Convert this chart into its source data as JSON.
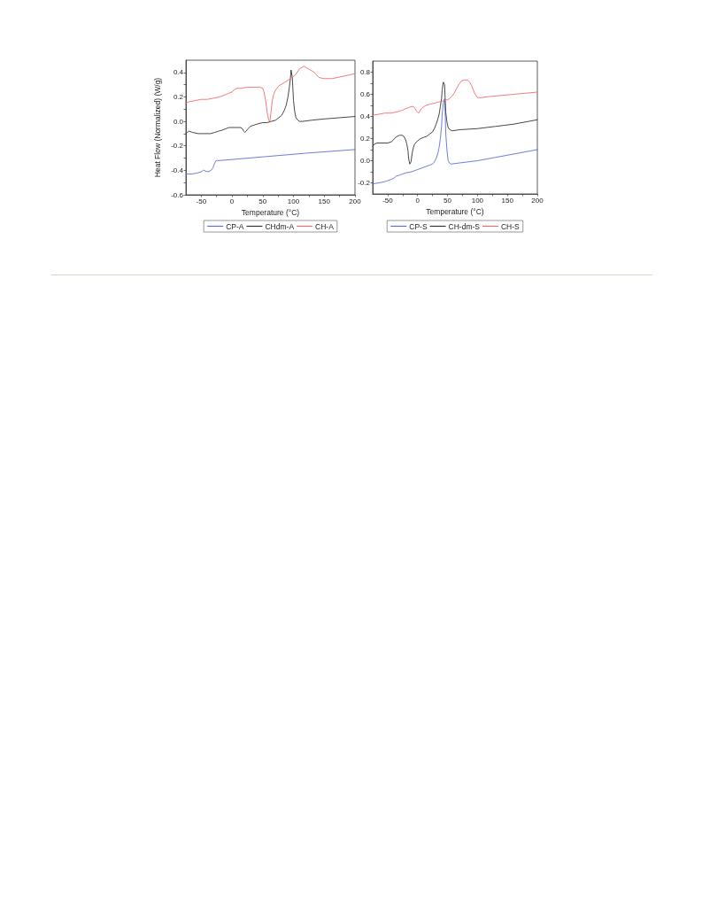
{
  "chart_data": [
    {
      "type": "line",
      "xlabel": "Temperature (°C)",
      "ylabel": "Heat Flow (Normalized) (W/g)",
      "xlim": [
        -75,
        200
      ],
      "ylim": [
        -0.6,
        0.5
      ],
      "xticks": [
        -50,
        {
          "value": -25,
          "label": null
        },
        0,
        {
          "value": 25,
          "label": null
        },
        50,
        {
          "value": 75,
          "label": null
        },
        100,
        {
          "value": 125,
          "label": null
        },
        150,
        {
          "value": 175,
          "label": null
        },
        200
      ],
      "yticks": [
        -0.6,
        {
          "value": -0.5,
          "label": null
        },
        -0.4,
        {
          "value": -0.3,
          "label": null
        },
        -0.2,
        {
          "value": -0.1,
          "label": null
        },
        {
          "value": 0,
          "label": "0.0"
        },
        {
          "value": 0.1,
          "label": null
        },
        0.2,
        {
          "value": 0.3,
          "label": null
        },
        0.4
      ],
      "legend": "bottom",
      "marker": "none",
      "line_style": "solid",
      "series": [
        {
          "name": "CP-A",
          "color": "#5b6fd6",
          "x": [
            -75,
            -65,
            -55,
            -49,
            -47,
            -45,
            -42,
            -38,
            -34,
            -31,
            -29,
            -28,
            -26,
            -24,
            -20,
            50,
            120,
            200
          ],
          "values": [
            -0.43,
            -0.43,
            -0.42,
            -0.41,
            -0.4,
            -0.4,
            -0.41,
            -0.41,
            -0.4,
            -0.38,
            -0.35,
            -0.34,
            -0.32,
            -0.32,
            -0.32,
            -0.29,
            -0.26,
            -0.23
          ]
        },
        {
          "name": "CHdm-A",
          "color": "#333333",
          "x": [
            -75,
            -73,
            -70,
            -64,
            -55,
            -45,
            -35,
            -28,
            -22,
            -15,
            -10,
            -5,
            0,
            5,
            10,
            14,
            17,
            19,
            21,
            23,
            26,
            30,
            36,
            42,
            50,
            57,
            64,
            71,
            76,
            81,
            85,
            88,
            91,
            93,
            95,
            96,
            98,
            99,
            100,
            102,
            104,
            107,
            110,
            115,
            130,
            150,
            175,
            200
          ],
          "values": [
            -0.1,
            -0.09,
            -0.08,
            -0.09,
            -0.1,
            -0.1,
            -0.1,
            -0.09,
            -0.08,
            -0.07,
            -0.06,
            -0.05,
            -0.05,
            -0.05,
            -0.05,
            -0.05,
            -0.06,
            -0.08,
            -0.09,
            -0.08,
            -0.06,
            -0.04,
            -0.03,
            -0.02,
            -0.01,
            -0.01,
            0.0,
            0.01,
            0.03,
            0.05,
            0.09,
            0.13,
            0.2,
            0.27,
            0.35,
            0.42,
            0.36,
            0.27,
            0.17,
            0.08,
            0.03,
            0.01,
            0.0,
            0.0,
            0.01,
            0.02,
            0.03,
            0.04
          ]
        },
        {
          "name": "CH-A",
          "color": "#f26c6c",
          "x": [
            -75,
            -70,
            -60,
            -50,
            -40,
            -30,
            -20,
            -10,
            -5,
            0,
            4,
            8,
            15,
            25,
            35,
            45,
            50,
            52,
            54,
            56,
            58,
            60,
            61,
            62,
            63,
            65,
            67,
            70,
            76,
            86,
            95,
            103,
            110,
            117,
            124,
            134,
            141,
            148,
            163,
            182,
            200
          ],
          "values": [
            0.15,
            0.16,
            0.17,
            0.18,
            0.18,
            0.19,
            0.2,
            0.22,
            0.23,
            0.24,
            0.26,
            0.27,
            0.27,
            0.28,
            0.28,
            0.28,
            0.27,
            0.24,
            0.19,
            0.12,
            0.05,
            0.01,
            0.0,
            0.01,
            0.06,
            0.15,
            0.21,
            0.25,
            0.29,
            0.32,
            0.35,
            0.38,
            0.43,
            0.45,
            0.43,
            0.4,
            0.36,
            0.35,
            0.35,
            0.37,
            0.39
          ]
        }
      ]
    },
    {
      "type": "line",
      "xlabel": "Temperature (°C)",
      "xlim": [
        -75,
        200
      ],
      "ylim": [
        -0.3,
        0.9
      ],
      "xticks": [
        -50,
        {
          "value": -25,
          "label": null
        },
        0,
        {
          "value": 25,
          "label": null
        },
        50,
        {
          "value": 75,
          "label": null
        },
        100,
        {
          "value": 125,
          "label": null
        },
        150,
        {
          "value": 175,
          "label": null
        },
        200
      ],
      "yticks": [
        -0.2,
        {
          "value": -0.1,
          "label": null
        },
        {
          "value": 0,
          "label": "0.0"
        },
        {
          "value": 0.1,
          "label": null
        },
        0.2,
        {
          "value": 0.3,
          "label": null
        },
        0.4,
        {
          "value": 0.5,
          "label": null
        },
        0.6,
        {
          "value": 0.7,
          "label": null
        },
        0.8
      ],
      "legend": "bottom",
      "marker": "none",
      "line_style": "solid",
      "series": [
        {
          "name": "CP-S",
          "color": "#5b6fd6",
          "x": [
            -75,
            -65,
            -55,
            -45,
            -40,
            -36,
            -30,
            -20,
            -10,
            0,
            10,
            20,
            25,
            28,
            31,
            34,
            36,
            38,
            40,
            41,
            43,
            45,
            46,
            47,
            49,
            51,
            53,
            56,
            70,
            100,
            130,
            160,
            200
          ],
          "values": [
            -0.21,
            -0.2,
            -0.19,
            -0.17,
            -0.16,
            -0.14,
            -0.13,
            -0.11,
            -0.1,
            -0.08,
            -0.06,
            -0.04,
            -0.03,
            -0.01,
            0.02,
            0.07,
            0.12,
            0.2,
            0.31,
            0.42,
            0.52,
            0.56,
            0.45,
            0.25,
            0.1,
            0.0,
            -0.02,
            -0.03,
            -0.02,
            0.0,
            0.03,
            0.06,
            0.1
          ]
        },
        {
          "name": "CH-dm-S",
          "color": "#333333",
          "x": [
            -75,
            -72,
            -68,
            -60,
            -50,
            -44,
            -40,
            -37,
            -34,
            -30,
            -26,
            -23,
            -20,
            -18,
            -16,
            -15,
            -13,
            -12,
            -11,
            -9,
            -7,
            -5,
            0,
            5,
            10,
            15,
            20,
            25,
            28,
            31,
            34,
            36,
            38,
            40,
            41,
            43,
            45,
            46,
            47,
            49,
            51,
            54,
            58,
            70,
            100,
            130,
            160,
            200
          ],
          "values": [
            0.13,
            0.15,
            0.16,
            0.16,
            0.16,
            0.17,
            0.19,
            0.21,
            0.22,
            0.23,
            0.23,
            0.22,
            0.19,
            0.15,
            0.09,
            0.02,
            -0.03,
            -0.03,
            -0.01,
            0.07,
            0.12,
            0.15,
            0.18,
            0.2,
            0.21,
            0.22,
            0.24,
            0.26,
            0.29,
            0.33,
            0.38,
            0.42,
            0.49,
            0.56,
            0.64,
            0.71,
            0.69,
            0.57,
            0.44,
            0.35,
            0.3,
            0.28,
            0.27,
            0.28,
            0.29,
            0.31,
            0.33,
            0.37
          ]
        },
        {
          "name": "CH-S",
          "color": "#f26c6c",
          "x": [
            -75,
            -65,
            -55,
            -45,
            -35,
            -29,
            -24,
            -20,
            -15,
            -10,
            -7,
            -4,
            -2,
            0,
            2,
            3,
            5,
            8,
            14,
            20,
            28,
            35,
            42,
            49,
            53,
            57,
            61,
            65,
            69,
            73,
            78,
            83,
            87,
            90,
            93,
            96,
            100,
            107,
            120,
            140,
            160,
            180,
            200
          ],
          "values": [
            0.41,
            0.42,
            0.43,
            0.43,
            0.44,
            0.45,
            0.46,
            0.47,
            0.48,
            0.49,
            0.49,
            0.47,
            0.45,
            0.44,
            0.43,
            0.44,
            0.46,
            0.48,
            0.5,
            0.51,
            0.52,
            0.53,
            0.54,
            0.55,
            0.56,
            0.58,
            0.61,
            0.65,
            0.69,
            0.72,
            0.73,
            0.73,
            0.71,
            0.68,
            0.64,
            0.6,
            0.57,
            0.57,
            0.58,
            0.59,
            0.6,
            0.61,
            0.62
          ]
        }
      ]
    }
  ]
}
